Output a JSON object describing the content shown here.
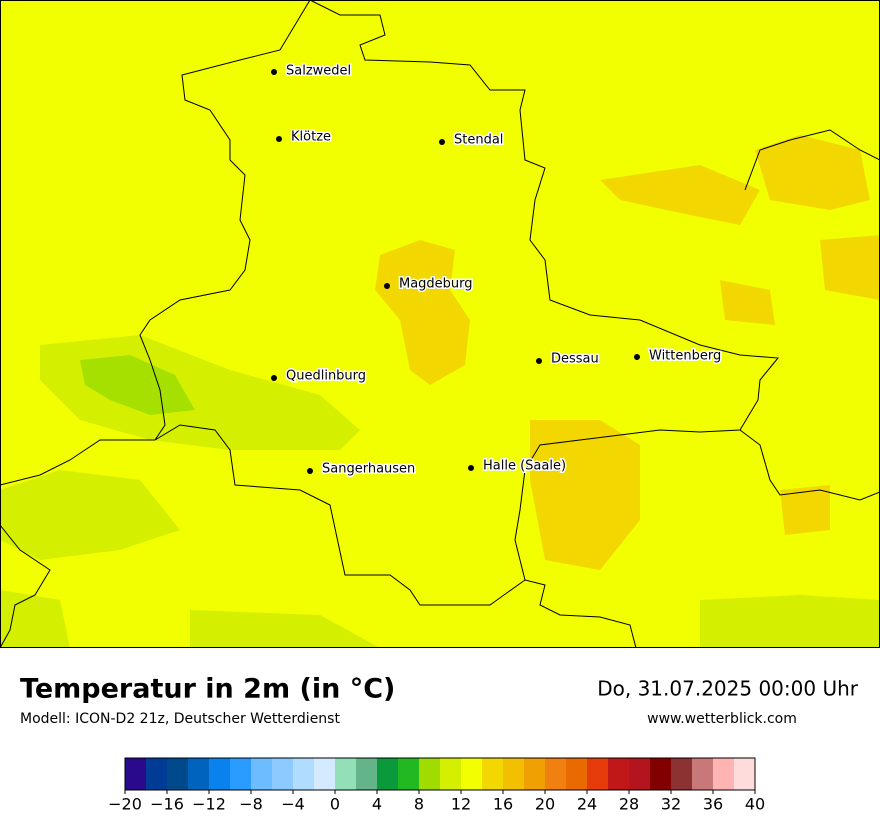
{
  "map": {
    "cities": [
      "Salzwedel",
      "Klötze",
      "Stendal",
      "Magdeburg",
      "Dessau",
      "Wittenberg",
      "Quedlinburg",
      "Sangerhausen",
      "Halle (Saale)"
    ]
  },
  "header": {
    "title": "Temperatur in 2m (in °C)",
    "subtitle": "Modell: ICON-D2 21z, Deutscher Wetterdienst",
    "date": "Do, 31.07.2025 00:00 Uhr",
    "website": "www.wetterblick.com"
  },
  "colorbar": {
    "min": -20,
    "max": 40,
    "colors": [
      "#2a0a8c",
      "#003c96",
      "#004a8c",
      "#0064be",
      "#0a82ee",
      "#2a9bff",
      "#6cbcff",
      "#8ccaff",
      "#b0dcff",
      "#d4ebff",
      "#92dfb8",
      "#64b48a",
      "#0a9a3c",
      "#22b822",
      "#a0dc00",
      "#d4f000",
      "#f2ff00",
      "#f2d800",
      "#f2c000",
      "#f0a000",
      "#f08010",
      "#e86a00",
      "#e63c0c",
      "#c01818",
      "#b4141e",
      "#820000",
      "#8c3232",
      "#c87878",
      "#ffb4b4",
      "#ffdcdc"
    ],
    "ticks": [
      {
        "value": -20,
        "label": "−20"
      },
      {
        "value": -16,
        "label": "−16"
      },
      {
        "value": -12,
        "label": "−12"
      },
      {
        "value": -8,
        "label": "−8"
      },
      {
        "value": -4,
        "label": "−4"
      },
      0,
      4,
      8,
      12,
      16,
      20,
      24,
      28,
      32,
      36,
      40
    ]
  }
}
